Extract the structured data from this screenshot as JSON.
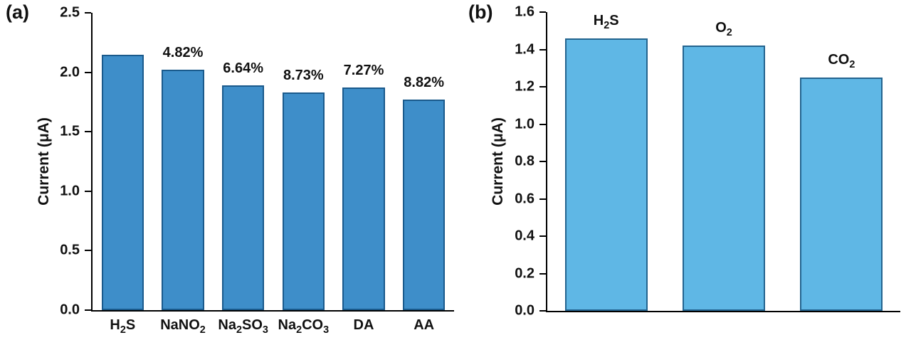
{
  "figure": {
    "background": "#ffffff",
    "text_color": "#111111",
    "axis_color": "#000000"
  },
  "chart_data": [
    {
      "type": "bar",
      "panel_label": "(a)",
      "title": "",
      "xlabel": "",
      "ylabel": "Current (μA)",
      "ylim": [
        0.0,
        2.5
      ],
      "yticks": [
        0.0,
        0.5,
        1.0,
        1.5,
        2.0,
        2.5
      ],
      "categories": [
        "H2S",
        "NaNO2",
        "Na2SO3",
        "Na2CO3",
        "DA",
        "AA"
      ],
      "values": [
        2.15,
        2.02,
        1.89,
        1.83,
        1.87,
        1.77
      ],
      "value_labels": [
        "",
        "4.82%",
        "6.64%",
        "8.73%",
        "7.27%",
        "8.82%"
      ],
      "category_position": "below-axis",
      "bar_color": "#3e8ec9",
      "bar_edge_color": "#1a5a8c",
      "grid": false,
      "legend": "none"
    },
    {
      "type": "bar",
      "panel_label": "(b)",
      "title": "",
      "xlabel": "",
      "ylabel": "Current (μA)",
      "ylim": [
        0.0,
        1.6
      ],
      "yticks": [
        0.0,
        0.2,
        0.4,
        0.6,
        0.8,
        1.0,
        1.2,
        1.4,
        1.6
      ],
      "categories": [
        "H2S",
        "O2",
        "CO2"
      ],
      "values": [
        1.46,
        1.42,
        1.25
      ],
      "value_labels": [
        "",
        "",
        ""
      ],
      "category_position": "above-bars",
      "bar_color": "#5fb7e5",
      "bar_edge_color": "#24648f",
      "grid": false,
      "legend": "none"
    }
  ]
}
